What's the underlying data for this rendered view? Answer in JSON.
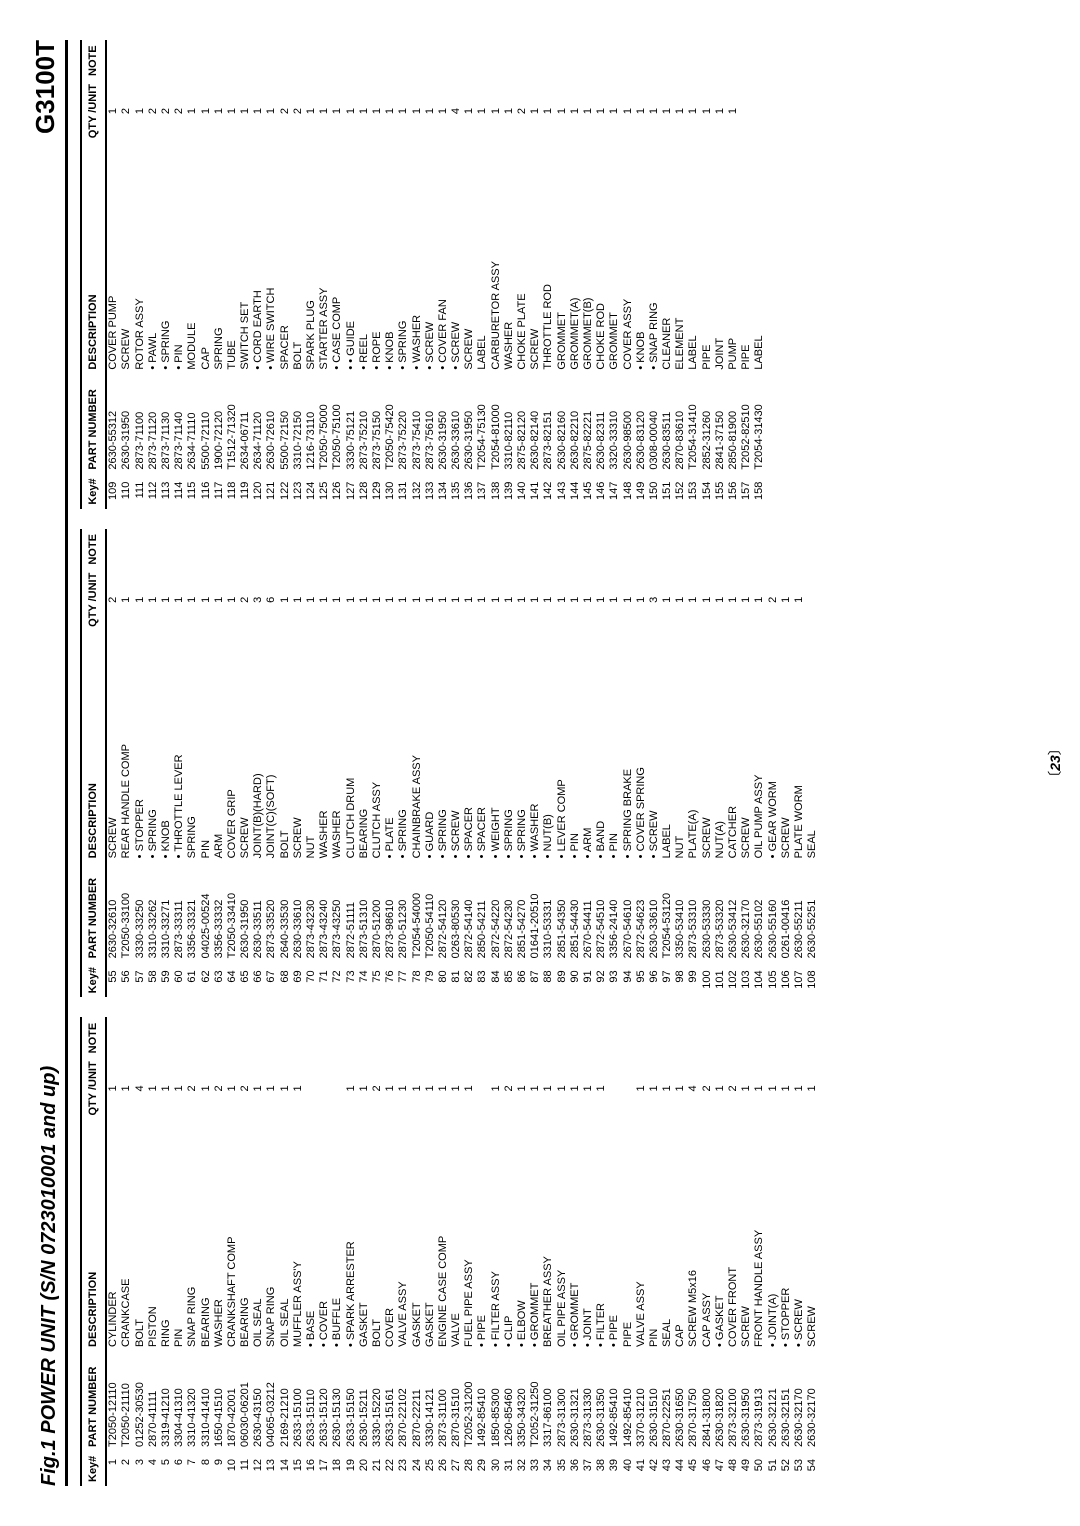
{
  "figTitle": "Fig.1 POWER UNIT  (S/N 0723010001 and up)",
  "model": "G3100T",
  "pageNumber": "23",
  "headers": {
    "key": "Key#",
    "pn": "PART NUMBER",
    "desc": "DESCRIPTION",
    "qty": "QTY /UNIT",
    "note": "NOTE"
  },
  "columns": [
    [
      {
        "k": "1",
        "p": "T2050-12110",
        "d": "CYLINDER",
        "q": "1"
      },
      {
        "k": "2",
        "p": "T2050-21110",
        "d": "CRANKCASE",
        "q": "1"
      },
      {
        "k": "3",
        "p": "01252-30530",
        "d": "BOLT",
        "q": "4"
      },
      {
        "k": "4",
        "p": "2870-41111",
        "d": "PISTON",
        "q": "1"
      },
      {
        "k": "5",
        "p": "3319-41210",
        "d": "RING",
        "q": "1"
      },
      {
        "k": "6",
        "p": "3304-41310",
        "d": "PIN",
        "q": "1"
      },
      {
        "k": "7",
        "p": "3310-41320",
        "d": "SNAP RING",
        "q": "2"
      },
      {
        "k": "8",
        "p": "3310-41410",
        "d": "BEARING",
        "q": "1"
      },
      {
        "k": "9",
        "p": "1650-41510",
        "d": "WASHER",
        "q": "2"
      },
      {
        "k": "10",
        "p": "1870-42001",
        "d": "CRANKSHAFT COMP",
        "q": "1"
      },
      {
        "k": "11",
        "p": "06030-06201",
        "d": "BEARING",
        "q": "2"
      },
      {
        "k": "12",
        "p": "2630-43150",
        "d": "OIL SEAL",
        "q": "1"
      },
      {
        "k": "13",
        "p": "04065-03212",
        "d": "SNAP RING",
        "q": "1"
      },
      {
        "k": "14",
        "p": "2169-21210",
        "d": "OIL SEAL",
        "q": "1"
      },
      {
        "k": "15",
        "p": "2633-15100",
        "d": "MUFFLER ASS'Y",
        "q": "1"
      },
      {
        "k": "16",
        "p": "2633-15110",
        "d": "• BASE",
        "q": ""
      },
      {
        "k": "17",
        "p": "2633-15120",
        "d": "• COVER",
        "q": ""
      },
      {
        "k": "18",
        "p": "2630-15130",
        "d": "• BUFFLE",
        "q": ""
      },
      {
        "k": "19",
        "p": "2633-15150",
        "d": "• SPARK ARRESTER",
        "q": "1"
      },
      {
        "k": "20",
        "p": "2630-15211",
        "d": "GASKET",
        "q": "1"
      },
      {
        "k": "21",
        "p": "3330-15220",
        "d": "BOLT",
        "q": "2"
      },
      {
        "k": "22",
        "p": "2633-15161",
        "d": "COVER",
        "q": "1"
      },
      {
        "k": "23",
        "p": "2870-22102",
        "d": "VALVE ASSY",
        "q": "1"
      },
      {
        "k": "24",
        "p": "2870-22211",
        "d": "GASKET",
        "q": "1"
      },
      {
        "k": "25",
        "p": "3330-14121",
        "d": "GASKET",
        "q": "1"
      },
      {
        "k": "26",
        "p": "2873-31100",
        "d": "ENGINE CASE COMP",
        "q": "1"
      },
      {
        "k": "27",
        "p": "2870-31510",
        "d": "VALVE",
        "q": "1"
      },
      {
        "k": "28",
        "p": "T2052-31200",
        "d": "FUEL PIPE ASSY",
        "q": "1"
      },
      {
        "k": "29",
        "p": "1492-85410",
        "d": "• PIPE",
        "q": ""
      },
      {
        "k": "30",
        "p": "1850-85300",
        "d": "• FILTER ASSY",
        "q": "1"
      },
      {
        "k": "31",
        "p": "1260-85460",
        "d": "• CLIP",
        "q": "2"
      },
      {
        "k": "32",
        "p": "3350-34320",
        "d": "• ELBOW",
        "q": "1"
      },
      {
        "k": "33",
        "p": "T2052-31250",
        "d": "• GROMMET",
        "q": "1"
      },
      {
        "k": "34",
        "p": "3317-86100",
        "d": "BREATHER ASSY",
        "q": "1"
      },
      {
        "k": "35",
        "p": "2873-31300",
        "d": "OIL PIPE ASSY",
        "q": "1"
      },
      {
        "k": "36",
        "p": "2630-31321",
        "d": "• GROMMET",
        "q": "1"
      },
      {
        "k": "37",
        "p": "2873-31330",
        "d": "• JOINT",
        "q": "1"
      },
      {
        "k": "38",
        "p": "2630-31350",
        "d": "• FILTER",
        "q": "1"
      },
      {
        "k": "39",
        "p": "1492-85410",
        "d": "• PIPE",
        "q": ""
      },
      {
        "k": "40",
        "p": "1492-85410",
        "d": "PIPE",
        "q": ""
      },
      {
        "k": "41",
        "p": "3370-31210",
        "d": "VALVE ASSY",
        "q": "1"
      },
      {
        "k": "42",
        "p": "2630-31510",
        "d": "PIN",
        "q": "1"
      },
      {
        "k": "43",
        "p": "2870-22251",
        "d": "SEAL",
        "q": "1"
      },
      {
        "k": "44",
        "p": "2630-31650",
        "d": "CAP",
        "q": "1"
      },
      {
        "k": "45",
        "p": "2870-31750",
        "d": "SCREW M5x16",
        "q": "4"
      },
      {
        "k": "46",
        "p": "2841-31800",
        "d": "CAP ASSY",
        "q": "2"
      },
      {
        "k": "47",
        "p": "2630-31820",
        "d": "• GASKET",
        "q": "1"
      },
      {
        "k": "48",
        "p": "2873-32100",
        "d": "COVER FRONT",
        "q": "2"
      },
      {
        "k": "49",
        "p": "2630-31950",
        "d": "SCREW",
        "q": "1"
      },
      {
        "k": "50",
        "p": "2873-31913",
        "d": "FRONT HANDLE ASSY",
        "q": "1"
      },
      {
        "k": "51",
        "p": "2630-32121",
        "d": "• JOINT(A)",
        "q": "1"
      },
      {
        "k": "52",
        "p": "2630-32151",
        "d": "• STOPPER",
        "q": "1"
      },
      {
        "k": "53",
        "p": "2630-32170",
        "d": "• SCREW",
        "q": "1"
      },
      {
        "k": "54",
        "p": "2630-32170",
        "d": "SCREW",
        "q": "1"
      }
    ],
    [
      {
        "k": "55",
        "p": "2630-32610",
        "d": "SCREW",
        "q": "2"
      },
      {
        "k": "56",
        "p": "T2050-33100",
        "d": "REAR HANDLE COMP",
        "q": "1"
      },
      {
        "k": "57",
        "p": "3330-33250",
        "d": "• STOPPER",
        "q": "1"
      },
      {
        "k": "58",
        "p": "3310-33262",
        "d": "• SPRING",
        "q": "1"
      },
      {
        "k": "59",
        "p": "3310-33271",
        "d": "• KNOB",
        "q": "1"
      },
      {
        "k": "60",
        "p": "2873-33311",
        "d": "• THROTTLE LEVER",
        "q": "1"
      },
      {
        "k": "61",
        "p": "3356-33321",
        "d": "SPRING",
        "q": "1"
      },
      {
        "k": "62",
        "p": "04025-00524",
        "d": "PIN",
        "q": "1"
      },
      {
        "k": "63",
        "p": "3356-33332",
        "d": "ARM",
        "q": "1"
      },
      {
        "k": "64",
        "p": "T2050-33410",
        "d": "COVER GRIP",
        "q": "1"
      },
      {
        "k": "65",
        "p": "2630-31950",
        "d": "SCREW",
        "q": "2"
      },
      {
        "k": "66",
        "p": "2630-33511",
        "d": "JOINT(B)(HARD)",
        "q": "3"
      },
      {
        "k": "67",
        "p": "2873-33520",
        "d": "JOINT(C)(SOFT)",
        "q": "6"
      },
      {
        "k": "68",
        "p": "2640-33530",
        "d": "BOLT",
        "q": "1"
      },
      {
        "k": "69",
        "p": "2630-33610",
        "d": "SCREW",
        "q": "1"
      },
      {
        "k": "70",
        "p": "2873-43230",
        "d": "NUT",
        "q": "1"
      },
      {
        "k": "71",
        "p": "2873-43240",
        "d": "WASHER",
        "q": "1"
      },
      {
        "k": "72",
        "p": "2873-43250",
        "d": "WASHER",
        "q": "1"
      },
      {
        "k": "73",
        "p": "2872-51111",
        "d": "CLUTCH DRUM",
        "q": "1"
      },
      {
        "k": "74",
        "p": "2873-51310",
        "d": "BEARING",
        "q": "1"
      },
      {
        "k": "75",
        "p": "2870-51200",
        "d": "CLUTCH ASSY",
        "q": "1"
      },
      {
        "k": "76",
        "p": "2873-98610",
        "d": "• PLATE",
        "q": "1"
      },
      {
        "k": "77",
        "p": "2870-51230",
        "d": "• SPRING",
        "q": "1"
      },
      {
        "k": "78",
        "p": "T2054-54000",
        "d": "CHAINBRAKE ASSY",
        "q": "1"
      },
      {
        "k": "79",
        "p": "T2050-54110",
        "d": "• GUARD",
        "q": "1"
      },
      {
        "k": "80",
        "p": "2872-54120",
        "d": "• SPRING",
        "q": "1"
      },
      {
        "k": "81",
        "p": "0263-80530",
        "d": "• SCREW",
        "q": "1"
      },
      {
        "k": "82",
        "p": "2872-54140",
        "d": "• SPACER",
        "q": "1"
      },
      {
        "k": "83",
        "p": "2850-54211",
        "d": "• SPACER",
        "q": "1"
      },
      {
        "k": "84",
        "p": "2872-54220",
        "d": "• WEIGHT",
        "q": "1"
      },
      {
        "k": "85",
        "p": "2872-54230",
        "d": "• SPRING",
        "q": "1"
      },
      {
        "k": "86",
        "p": "2851-54270",
        "d": "• SPRING",
        "q": "1"
      },
      {
        "k": "87",
        "p": "01641-20510",
        "d": "• WASHER",
        "q": "1"
      },
      {
        "k": "88",
        "p": "3310-53331",
        "d": "• NUT(B)",
        "q": "1"
      },
      {
        "k": "89",
        "p": "2851-54350",
        "d": "• LEVER COMP",
        "q": "1"
      },
      {
        "k": "90",
        "p": "2851-54430",
        "d": "• PIN",
        "q": "1"
      },
      {
        "k": "91",
        "p": "2670-54411",
        "d": "• ARM",
        "q": "1"
      },
      {
        "k": "92",
        "p": "2872-54510",
        "d": "• BAND",
        "q": "1"
      },
      {
        "k": "93",
        "p": "3356-24140",
        "d": "• PIN",
        "q": "1"
      },
      {
        "k": "94",
        "p": "2670-54610",
        "d": "• SPRING BRAKE",
        "q": "1"
      },
      {
        "k": "95",
        "p": "2872-54623",
        "d": "• COVER SPRING",
        "q": "1"
      },
      {
        "k": "96",
        "p": "2630-33610",
        "d": "• SCREW",
        "q": "3"
      },
      {
        "k": "97",
        "p": "T2054-53120",
        "d": "LABEL",
        "q": "1"
      },
      {
        "k": "98",
        "p": "3350-53410",
        "d": "NUT",
        "q": "1"
      },
      {
        "k": "99",
        "p": "2873-53310",
        "d": "PLATE(A)",
        "q": "1"
      },
      {
        "k": "100",
        "p": "2630-53330",
        "d": "SCREW",
        "q": "1"
      },
      {
        "k": "101",
        "p": "2873-53320",
        "d": "NUT(A)",
        "q": "1"
      },
      {
        "k": "102",
        "p": "2630-53412",
        "d": "CATCHER",
        "q": "1"
      },
      {
        "k": "103",
        "p": "2630-32170",
        "d": "SCREW",
        "q": "1"
      },
      {
        "k": "104",
        "p": "2630-55102",
        "d": "OIL PUMP ASSY",
        "q": "1"
      },
      {
        "k": "105",
        "p": "2630-55160",
        "d": "• GEAR WORM",
        "q": "2"
      },
      {
        "k": "106",
        "p": "0261-00416",
        "d": "SCREW",
        "q": "1"
      },
      {
        "k": "107",
        "p": "2630-55211",
        "d": "PLATE WORM",
        "q": "1"
      },
      {
        "k": "108",
        "p": "2630-55251",
        "d": "SEAL",
        "q": ""
      }
    ],
    [
      {
        "k": "109",
        "p": "2630-55312",
        "d": "COVER PUMP",
        "q": "1"
      },
      {
        "k": "110",
        "p": "2630-31950",
        "d": "SCREW",
        "q": "2"
      },
      {
        "k": "111",
        "p": "2873-71100",
        "d": "ROTOR ASSY",
        "q": "1"
      },
      {
        "k": "112",
        "p": "2873-71120",
        "d": "• PAWL",
        "q": "2"
      },
      {
        "k": "113",
        "p": "2873-71130",
        "d": "• SPRING",
        "q": "2"
      },
      {
        "k": "114",
        "p": "2873-71140",
        "d": "• PIN",
        "q": "2"
      },
      {
        "k": "115",
        "p": "2634-71110",
        "d": "MODULE",
        "q": "1"
      },
      {
        "k": "116",
        "p": "5500-72110",
        "d": "CAP",
        "q": "1"
      },
      {
        "k": "117",
        "p": "1900-72120",
        "d": "SPRING",
        "q": "1"
      },
      {
        "k": "118",
        "p": "T1512-71320",
        "d": "TUBE",
        "q": "1"
      },
      {
        "k": "119",
        "p": "2634-06711",
        "d": "SWITCH SET",
        "q": "1"
      },
      {
        "k": "120",
        "p": "2634-71120",
        "d": "• CORD EARTH",
        "q": "1"
      },
      {
        "k": "121",
        "p": "2630-72610",
        "d": "• WIRE SWITCH",
        "q": "1"
      },
      {
        "k": "122",
        "p": "5500-72150",
        "d": "SPACER",
        "q": "2"
      },
      {
        "k": "123",
        "p": "3310-72150",
        "d": "BOLT",
        "q": "2"
      },
      {
        "k": "124",
        "p": "1216-73110",
        "d": "SPARK PLUG",
        "q": "1"
      },
      {
        "k": "125",
        "p": "T2050-75000",
        "d": "STARTER ASSY",
        "q": "1"
      },
      {
        "k": "126",
        "p": "T2050-75100",
        "d": "• CASE COMP",
        "q": "1"
      },
      {
        "k": "127",
        "p": "3330-75121",
        "d": "• • GUIDE",
        "q": "1"
      },
      {
        "k": "128",
        "p": "2873-75210",
        "d": "• REEL",
        "q": "1"
      },
      {
        "k": "129",
        "p": "2873-75150",
        "d": "• ROPE",
        "q": "1"
      },
      {
        "k": "130",
        "p": "T2050-75420",
        "d": "• KNOB",
        "q": "1"
      },
      {
        "k": "131",
        "p": "2873-75220",
        "d": "• SPRING",
        "q": "1"
      },
      {
        "k": "132",
        "p": "2873-75410",
        "d": "• WASHER",
        "q": "1"
      },
      {
        "k": "133",
        "p": "2873-75610",
        "d": "• SCREW",
        "q": "1"
      },
      {
        "k": "134",
        "p": "2630-31950",
        "d": "• COVER FAN",
        "q": "1"
      },
      {
        "k": "135",
        "p": "2630-33610",
        "d": "• SCREW",
        "q": "4"
      },
      {
        "k": "136",
        "p": "2630-31950",
        "d": "SCREW",
        "q": "1"
      },
      {
        "k": "137",
        "p": "T2054-75130",
        "d": "LABEL",
        "q": "1"
      },
      {
        "k": "138",
        "p": "T2054-81000",
        "d": "CARBURETOR ASSY",
        "q": "1"
      },
      {
        "k": "139",
        "p": "3310-82110",
        "d": "WASHER",
        "q": "1"
      },
      {
        "k": "140",
        "p": "2875-82120",
        "d": "CHOKE PLATE",
        "q": "2"
      },
      {
        "k": "141",
        "p": "2630-82140",
        "d": "SCREW",
        "q": "1"
      },
      {
        "k": "142",
        "p": "2873-82151",
        "d": "THROTTLE ROD",
        "q": "1"
      },
      {
        "k": "143",
        "p": "2630-82160",
        "d": "GROMMET",
        "q": "1"
      },
      {
        "k": "144",
        "p": "2630-82210",
        "d": "GROMMET(A)",
        "q": "1"
      },
      {
        "k": "145",
        "p": "2875-82221",
        "d": "GROMMET(B)",
        "q": "1"
      },
      {
        "k": "146",
        "p": "2630-82311",
        "d": "CHOKE ROD",
        "q": "1"
      },
      {
        "k": "147",
        "p": "3320-33310",
        "d": "GROMMET",
        "q": "1"
      },
      {
        "k": "148",
        "p": "2630-98500",
        "d": "COVER ASSY",
        "q": "1"
      },
      {
        "k": "149",
        "p": "2630-83120",
        "d": "• KNOB",
        "q": "1"
      },
      {
        "k": "150",
        "p": "0308-00040",
        "d": "• SNAP RING",
        "q": "1"
      },
      {
        "k": "151",
        "p": "2630-83511",
        "d": "CLEANER",
        "q": "1"
      },
      {
        "k": "152",
        "p": "2870-83610",
        "d": "ELEMENT",
        "q": "1"
      },
      {
        "k": "153",
        "p": "T2054-31410",
        "d": "LABEL",
        "q": "1"
      },
      {
        "k": "154",
        "p": "2852-31260",
        "d": "PIPE",
        "q": "1"
      },
      {
        "k": "155",
        "p": "2841-37150",
        "d": "JOINT",
        "q": "1"
      },
      {
        "k": "156",
        "p": "2850-81900",
        "d": "PUMP",
        "q": "1"
      },
      {
        "k": "157",
        "p": "T2052-82510",
        "d": "PIPE",
        "q": ""
      },
      {
        "k": "158",
        "p": "T2054-31430",
        "d": "LABEL",
        "q": ""
      }
    ]
  ]
}
